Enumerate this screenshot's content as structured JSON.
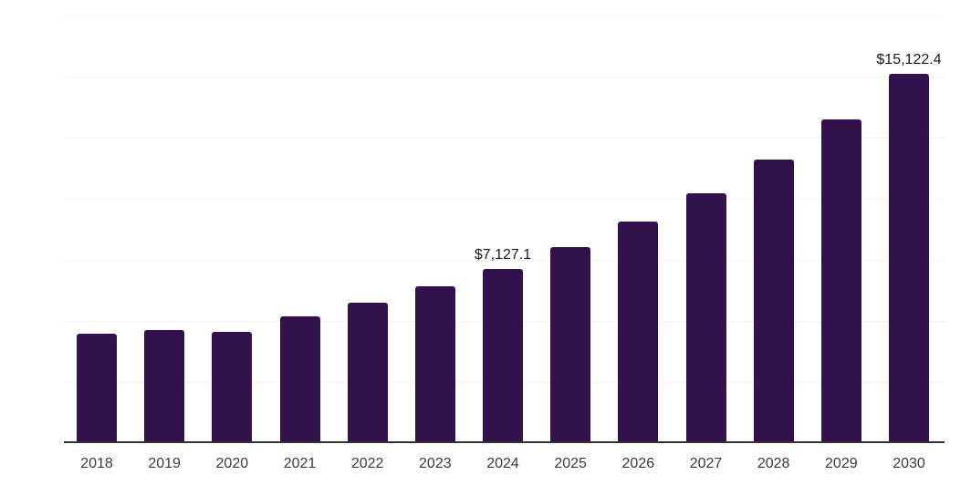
{
  "chart": {
    "background_color": "#ffffff",
    "bar_color": "#33114d",
    "axis_line_color": "#333333",
    "gridline_color": "#f2f2f2",
    "tick_label_color": "#3a3a3a",
    "data_label_color": "#1a1a1a"
  },
  "chart_data": {
    "type": "bar",
    "title": "",
    "xlabel": "",
    "ylabel": "",
    "categories": [
      "2018",
      "2019",
      "2020",
      "2021",
      "2022",
      "2023",
      "2024",
      "2025",
      "2026",
      "2027",
      "2028",
      "2029",
      "2030"
    ],
    "values": [
      4460,
      4610,
      4570,
      5170,
      5750,
      6400,
      7127.1,
      8040,
      9050,
      10220,
      11620,
      13230,
      15122.4
    ],
    "data_labels": [
      {
        "category": "2024",
        "text": "$7,127.1"
      },
      {
        "category": "2030",
        "text": "$15,122.4"
      }
    ],
    "ylim": [
      0,
      17500
    ],
    "gridline_step": 2500,
    "grid": "horizontal",
    "legend_position": "none",
    "y_axis_labels_visible": false
  }
}
